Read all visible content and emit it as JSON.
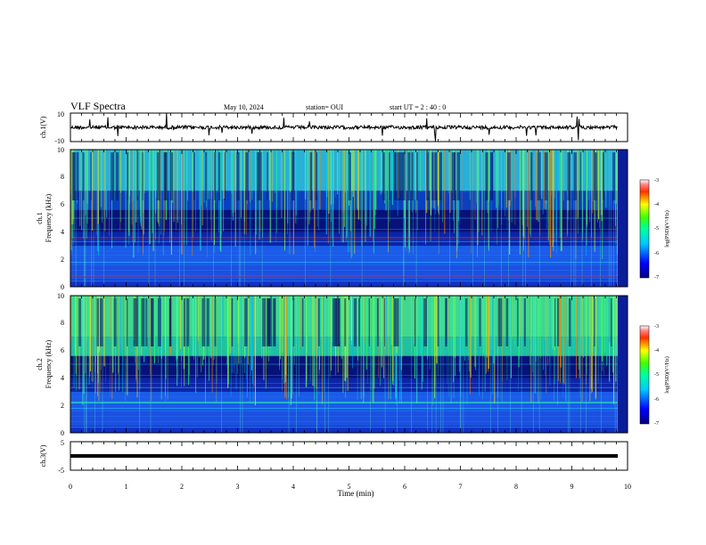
{
  "header": {
    "title": "VLF Spectra",
    "date": "May 10, 2024",
    "station": "station= OUI",
    "start": "start  UT =   2 : 40 : 0"
  },
  "chart_data": [
    {
      "type": "line",
      "ylabel": "ch.1(V)",
      "ylim": [
        -10,
        10
      ],
      "y_ticks": [
        "10",
        "-10"
      ],
      "xlim": [
        0,
        10
      ],
      "series": [
        {
          "values_summary": "noisy voltage trace centered near 0 V with ~±2 V fluctuations and occasional spikes to the range limits"
        }
      ]
    },
    {
      "type": "heatmap",
      "ylabel": "ch.1\nFrequency (kHz)",
      "ylim": [
        0,
        10
      ],
      "y_ticks": [
        "0",
        "2",
        "4",
        "6",
        "8",
        "10"
      ],
      "xlim": [
        0,
        10
      ],
      "colorbar": {
        "label": "log(PSD)(V²/Hz)",
        "range": [
          -7,
          -3
        ],
        "ticks": [
          "-3",
          "-4",
          "-5",
          "-6",
          "-7"
        ]
      },
      "colors": {
        "low": "#000080",
        "mid": "#00e0e0",
        "high": "#ff0000"
      }
    },
    {
      "type": "heatmap",
      "ylabel": "ch.2\nFrequency (kHz)",
      "ylim": [
        0,
        10
      ],
      "y_ticks": [
        "0",
        "2",
        "4",
        "6",
        "8",
        "10"
      ],
      "xlim": [
        0,
        10
      ],
      "colorbar": {
        "label": "log(PSD)(V²/Hz)",
        "range": [
          -7,
          -3
        ],
        "ticks": [
          "-3",
          "-4",
          "-5",
          "-6",
          "-7"
        ]
      }
    },
    {
      "type": "line",
      "ylabel": "ch.3(V)",
      "ylim": [
        -5,
        5
      ],
      "y_ticks": [
        "5",
        "-5"
      ],
      "xlim": [
        0,
        10
      ],
      "series": [
        {
          "values_summary": "constant near -1 V"
        }
      ]
    }
  ],
  "x_axis": {
    "label": "Time (min)",
    "ticks": [
      "0",
      "1",
      "2",
      "3",
      "4",
      "5",
      "6",
      "7",
      "8",
      "9",
      "10"
    ]
  }
}
